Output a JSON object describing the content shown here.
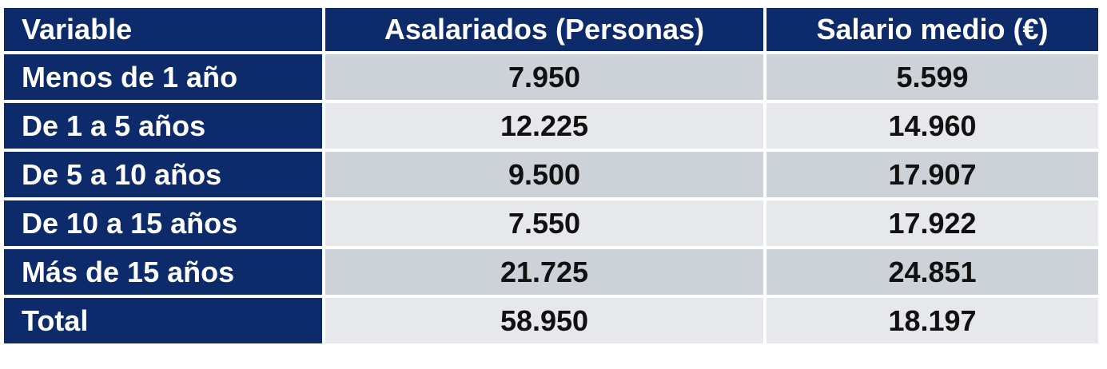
{
  "table": {
    "header": [
      "Variable",
      "Asalariados (Personas)",
      "Salario medio (€)"
    ],
    "rows": [
      [
        "Menos de 1 año",
        "7.950",
        "5.599"
      ],
      [
        "De 1 a 5 años",
        "12.225",
        "14.960"
      ],
      [
        "De 5 a 10 años",
        "9.500",
        "17.907"
      ],
      [
        "De 10 a 15 años",
        "7.550",
        "17.922"
      ],
      [
        "Más de 15 años",
        "21.725",
        "24.851"
      ],
      [
        "Total",
        "58.950",
        "18.197"
      ]
    ]
  }
}
